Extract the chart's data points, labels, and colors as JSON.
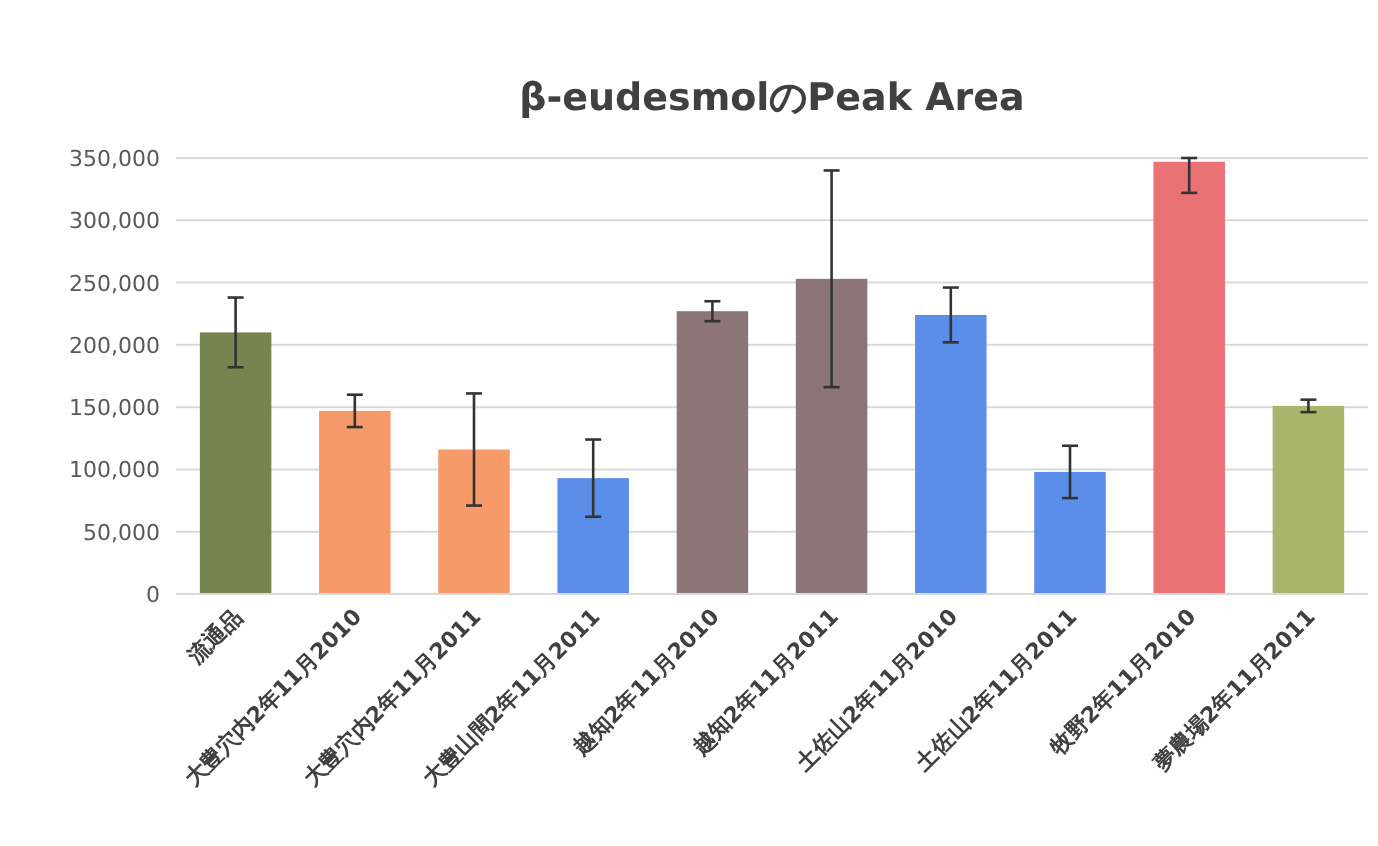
{
  "chart_data": {
    "type": "bar",
    "title": "β-eudesmolのPeak Area",
    "categories": [
      "流通品",
      "大豊穴内2年11月2010",
      "大豊穴内2年11月2011",
      "大豊山間2年11月2011",
      "越知2年11月2010",
      "越知2年11月2011",
      "土佐山2年11月2010",
      "土佐山2年11月2011",
      "牧野2年11月2010",
      "夢農場2年11月2011"
    ],
    "values": [
      210000,
      147000,
      116000,
      93000,
      227000,
      253000,
      224000,
      98000,
      347000,
      151000
    ],
    "errors": [
      28000,
      13000,
      45000,
      31000,
      8000,
      87000,
      22000,
      21000,
      [
        322000,
        350000
      ],
      5000
    ],
    "colors": [
      "#76844f",
      "#f79a6a",
      "#f79a6a",
      "#5a8ee8",
      "#8b7577",
      "#8b7577",
      "#5a8ee8",
      "#5a8ee8",
      "#ea7176",
      "#a9b56a"
    ],
    "ylim": [
      0,
      350000
    ],
    "yticks": [
      {
        "value": 0,
        "label": "0"
      },
      {
        "value": 50000,
        "label": "50,000"
      },
      {
        "value": 100000,
        "label": "100,000"
      },
      {
        "value": 150000,
        "label": "150,000"
      },
      {
        "value": 200000,
        "label": "200,000"
      },
      {
        "value": 250000,
        "label": "250,000"
      },
      {
        "value": 300000,
        "label": "300,000"
      },
      {
        "value": 350000,
        "label": "350,000"
      }
    ],
    "grid": "y"
  }
}
